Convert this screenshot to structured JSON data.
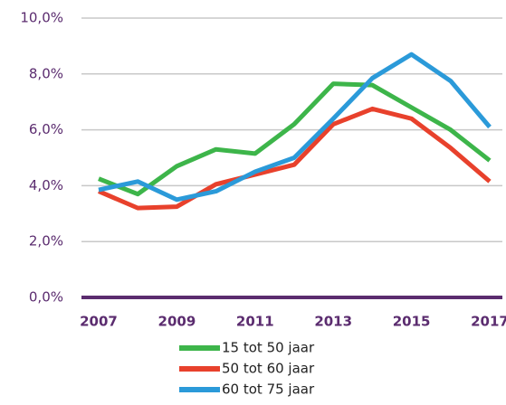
{
  "chart_data": {
    "type": "line",
    "x": [
      2007,
      2008,
      2009,
      2010,
      2011,
      2012,
      2013,
      2014,
      2015,
      2016,
      2017
    ],
    "xlim": [
      2007,
      2017
    ],
    "xticks": [
      2007,
      2009,
      2011,
      2013,
      2015,
      2017
    ],
    "ylim": [
      0,
      10
    ],
    "yticks": [
      {
        "value": 0,
        "label": "0,0%"
      },
      {
        "value": 2,
        "label": "2,0%"
      },
      {
        "value": 4,
        "label": "4,0%"
      },
      {
        "value": 6,
        "label": "6,0%"
      },
      {
        "value": 8,
        "label": "8,0%"
      },
      {
        "value": 10,
        "label": "10,0%"
      }
    ],
    "grid": true,
    "legend": "bottom",
    "series": [
      {
        "name": "15 tot 50 jaar",
        "color": "#3db54a",
        "values": [
          4.25,
          3.7,
          4.7,
          5.3,
          5.15,
          6.2,
          7.65,
          7.6,
          6.8,
          6.0,
          4.9
        ]
      },
      {
        "name": "50 tot 60 jaar",
        "color": "#e8412c",
        "values": [
          3.8,
          3.2,
          3.25,
          4.05,
          4.4,
          4.75,
          6.2,
          6.75,
          6.4,
          5.35,
          4.15
        ]
      },
      {
        "name": "60 tot 75 jaar",
        "color": "#2b9ad9",
        "values": [
          3.85,
          4.15,
          3.5,
          3.8,
          4.5,
          5.0,
          6.4,
          7.85,
          8.7,
          7.75,
          6.1
        ]
      }
    ]
  }
}
